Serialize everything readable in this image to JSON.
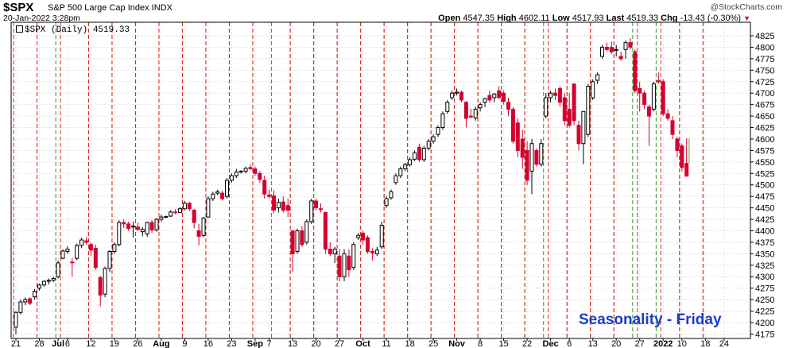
{
  "header": {
    "ticker": "$SPX",
    "company": "S&P 500 Large Cap Index INDX",
    "watermark": "@StockCharts.com",
    "date": "20-Jan-2022 3:28pm",
    "open_label": "Open",
    "open": "4547.35",
    "high_label": "High",
    "high": "4602.11",
    "low_label": "Low",
    "low": "4517.93",
    "last_label": "Last",
    "last": "4519.33",
    "chg_label": "Chg",
    "chg": "-13.43 (-0.30%)",
    "legend": "$SPX (Daily) 4519.33"
  },
  "annotation": "Seasonality - Friday",
  "chart_data": {
    "type": "candlestick",
    "ylim": [
      4160,
      4830
    ],
    "y_ticks": [
      4175,
      4200,
      4225,
      4250,
      4275,
      4300,
      4325,
      4350,
      4375,
      4400,
      4425,
      4450,
      4475,
      4500,
      4525,
      4550,
      4575,
      4600,
      4625,
      4650,
      4675,
      4700,
      4725,
      4750,
      4775,
      4800,
      4825
    ],
    "x_labels": [
      "21",
      "28",
      "Jul",
      "6",
      "12",
      "19",
      "26",
      "Aug",
      "9",
      "16",
      "23",
      "Sep",
      "7",
      "13",
      "20",
      "27",
      "Oct",
      "11",
      "18",
      "25",
      "Nov",
      "8",
      "15",
      "22",
      "Dec",
      "6",
      "13",
      "20",
      "27",
      "2022",
      "10",
      "18",
      "24"
    ],
    "x_label_idx": [
      0,
      5,
      9,
      11,
      16,
      21,
      26,
      31,
      36,
      41,
      46,
      51,
      54,
      59,
      64,
      69,
      74,
      79,
      84,
      89,
      94,
      99,
      104,
      109,
      114,
      118,
      123,
      128,
      133,
      138,
      142,
      147,
      151
    ],
    "bold_labels": [
      "Jul",
      "Aug",
      "Sep",
      "Oct",
      "Nov",
      "Dec",
      "2022"
    ],
    "friday_idx": [
      4,
      8,
      15,
      20,
      25,
      30,
      35,
      40,
      45,
      50,
      54,
      58,
      63,
      68,
      73,
      78,
      83,
      88,
      93,
      98,
      103,
      108,
      112,
      117,
      122,
      127,
      131,
      136,
      141,
      146
    ],
    "monday_idx": [
      0,
      5,
      10,
      16,
      21,
      26,
      31,
      36,
      41,
      46,
      51,
      59,
      64,
      69,
      74,
      79,
      84,
      89,
      94,
      99,
      104,
      109,
      114,
      118,
      123,
      128,
      133,
      138,
      142,
      147
    ],
    "candles": [
      {
        "o": 4190,
        "h": 4225,
        "l": 4175,
        "c": 4222
      },
      {
        "o": 4222,
        "h": 4250,
        "l": 4218,
        "c": 4245
      },
      {
        "o": 4245,
        "h": 4255,
        "l": 4238,
        "c": 4250
      },
      {
        "o": 4252,
        "h": 4255,
        "l": 4238,
        "c": 4242
      },
      {
        "o": 4256,
        "h": 4273,
        "l": 4250,
        "c": 4268
      },
      {
        "o": 4275,
        "h": 4285,
        "l": 4270,
        "c": 4282
      },
      {
        "o": 4282,
        "h": 4292,
        "l": 4278,
        "c": 4290
      },
      {
        "o": 4290,
        "h": 4296,
        "l": 4283,
        "c": 4292
      },
      {
        "o": 4292,
        "h": 4300,
        "l": 4288,
        "c": 4296
      },
      {
        "o": 4300,
        "h": 4335,
        "l": 4296,
        "c": 4330
      },
      {
        "o": 4340,
        "h": 4360,
        "l": 4338,
        "c": 4356
      },
      {
        "o": 4355,
        "h": 4366,
        "l": 4350,
        "c": 4360
      },
      {
        "o": 4332,
        "h": 4340,
        "l": 4300,
        "c": 4331
      },
      {
        "o": 4340,
        "h": 4372,
        "l": 4336,
        "c": 4368
      },
      {
        "o": 4368,
        "h": 4385,
        "l": 4362,
        "c": 4380
      },
      {
        "o": 4378,
        "h": 4386,
        "l": 4370,
        "c": 4375
      },
      {
        "o": 4370,
        "h": 4375,
        "l": 4345,
        "c": 4358
      },
      {
        "o": 4362,
        "h": 4370,
        "l": 4315,
        "c": 4320
      },
      {
        "o": 4298,
        "h": 4302,
        "l": 4235,
        "c": 4260
      },
      {
        "o": 4262,
        "h": 4322,
        "l": 4255,
        "c": 4318
      },
      {
        "o": 4318,
        "h": 4358,
        "l": 4310,
        "c": 4355
      },
      {
        "o": 4355,
        "h": 4375,
        "l": 4350,
        "c": 4370
      },
      {
        "o": 4370,
        "h": 4423,
        "l": 4366,
        "c": 4418
      },
      {
        "o": 4418,
        "h": 4425,
        "l": 4406,
        "c": 4415
      },
      {
        "o": 4415,
        "h": 4420,
        "l": 4400,
        "c": 4405
      },
      {
        "o": 4410,
        "h": 4420,
        "l": 4385,
        "c": 4410
      },
      {
        "o": 4408,
        "h": 4418,
        "l": 4400,
        "c": 4403
      },
      {
        "o": 4398,
        "h": 4408,
        "l": 4388,
        "c": 4403
      },
      {
        "o": 4393,
        "h": 4420,
        "l": 4387,
        "c": 4418
      },
      {
        "o": 4418,
        "h": 4424,
        "l": 4395,
        "c": 4402
      },
      {
        "o": 4402,
        "h": 4428,
        "l": 4398,
        "c": 4425
      },
      {
        "o": 4425,
        "h": 4435,
        "l": 4420,
        "c": 4430
      },
      {
        "o": 4430,
        "h": 4433,
        "l": 4428,
        "c": 4431
      },
      {
        "o": 4432,
        "h": 4445,
        "l": 4430,
        "c": 4441
      },
      {
        "o": 4441,
        "h": 4447,
        "l": 4436,
        "c": 4440
      },
      {
        "o": 4440,
        "h": 4452,
        "l": 4438,
        "c": 4448
      },
      {
        "o": 4448,
        "h": 4465,
        "l": 4445,
        "c": 4460
      },
      {
        "o": 4460,
        "h": 4463,
        "l": 4443,
        "c": 4448
      },
      {
        "o": 4445,
        "h": 4448,
        "l": 4405,
        "c": 4418
      },
      {
        "o": 4400,
        "h": 4415,
        "l": 4368,
        "c": 4388
      },
      {
        "o": 4390,
        "h": 4430,
        "l": 4386,
        "c": 4428
      },
      {
        "o": 4430,
        "h": 4475,
        "l": 4428,
        "c": 4470
      },
      {
        "o": 4470,
        "h": 4485,
        "l": 4465,
        "c": 4480
      },
      {
        "o": 4482,
        "h": 4490,
        "l": 4478,
        "c": 4485
      },
      {
        "o": 4482,
        "h": 4488,
        "l": 4466,
        "c": 4470
      },
      {
        "o": 4475,
        "h": 4515,
        "l": 4470,
        "c": 4510
      },
      {
        "o": 4510,
        "h": 4525,
        "l": 4505,
        "c": 4520
      },
      {
        "o": 4520,
        "h": 4535,
        "l": 4515,
        "c": 4528
      },
      {
        "o": 4528,
        "h": 4532,
        "l": 4525,
        "c": 4530
      },
      {
        "o": 4530,
        "h": 4540,
        "l": 4525,
        "c": 4536
      },
      {
        "o": 4538,
        "h": 4545,
        "l": 4532,
        "c": 4535
      },
      {
        "o": 4535,
        "h": 4540,
        "l": 4520,
        "c": 4525
      },
      {
        "o": 4525,
        "h": 4530,
        "l": 4505,
        "c": 4512
      },
      {
        "o": 4510,
        "h": 4520,
        "l": 4470,
        "c": 4480
      },
      {
        "o": 4478,
        "h": 4490,
        "l": 4470,
        "c": 4475
      },
      {
        "o": 4476,
        "h": 4488,
        "l": 4438,
        "c": 4445
      },
      {
        "o": 4450,
        "h": 4470,
        "l": 4440,
        "c": 4462
      },
      {
        "o": 4463,
        "h": 4475,
        "l": 4440,
        "c": 4445
      },
      {
        "o": 4455,
        "h": 4470,
        "l": 4430,
        "c": 4445
      },
      {
        "o": 4400,
        "h": 4400,
        "l": 4310,
        "c": 4350
      },
      {
        "o": 4355,
        "h": 4405,
        "l": 4350,
        "c": 4400
      },
      {
        "o": 4400,
        "h": 4410,
        "l": 4365,
        "c": 4370
      },
      {
        "o": 4375,
        "h": 4425,
        "l": 4370,
        "c": 4420
      },
      {
        "o": 4420,
        "h": 4470,
        "l": 4415,
        "c": 4465
      },
      {
        "o": 4465,
        "h": 4470,
        "l": 4445,
        "c": 4450
      },
      {
        "o": 4448,
        "h": 4460,
        "l": 4440,
        "c": 4446
      },
      {
        "o": 4440,
        "h": 4440,
        "l": 4350,
        "c": 4360
      },
      {
        "o": 4360,
        "h": 4375,
        "l": 4345,
        "c": 4350
      },
      {
        "o": 4350,
        "h": 4365,
        "l": 4330,
        "c": 4360
      },
      {
        "o": 4345,
        "h": 4360,
        "l": 4290,
        "c": 4300
      },
      {
        "o": 4300,
        "h": 4360,
        "l": 4290,
        "c": 4350
      },
      {
        "o": 4345,
        "h": 4360,
        "l": 4300,
        "c": 4315
      },
      {
        "o": 4320,
        "h": 4375,
        "l": 4315,
        "c": 4370
      },
      {
        "o": 4385,
        "h": 4395,
        "l": 4380,
        "c": 4390
      },
      {
        "o": 4395,
        "h": 4400,
        "l": 4370,
        "c": 4380
      },
      {
        "o": 4385,
        "h": 4390,
        "l": 4350,
        "c": 4355
      },
      {
        "o": 4355,
        "h": 4362,
        "l": 4335,
        "c": 4352
      },
      {
        "o": 4350,
        "h": 4365,
        "l": 4345,
        "c": 4358
      },
      {
        "o": 4365,
        "h": 4420,
        "l": 4360,
        "c": 4412
      },
      {
        "o": 4455,
        "h": 4475,
        "l": 4450,
        "c": 4470
      },
      {
        "o": 4472,
        "h": 4490,
        "l": 4468,
        "c": 4485
      },
      {
        "o": 4505,
        "h": 4525,
        "l": 4500,
        "c": 4520
      },
      {
        "o": 4520,
        "h": 4540,
        "l": 4515,
        "c": 4535
      },
      {
        "o": 4535,
        "h": 4548,
        "l": 4530,
        "c": 4544
      },
      {
        "o": 4544,
        "h": 4560,
        "l": 4540,
        "c": 4555
      },
      {
        "o": 4556,
        "h": 4575,
        "l": 4552,
        "c": 4570
      },
      {
        "o": 4582,
        "h": 4590,
        "l": 4550,
        "c": 4555
      },
      {
        "o": 4555,
        "h": 4585,
        "l": 4550,
        "c": 4580
      },
      {
        "o": 4580,
        "h": 4600,
        "l": 4575,
        "c": 4595
      },
      {
        "o": 4595,
        "h": 4610,
        "l": 4590,
        "c": 4605
      },
      {
        "o": 4610,
        "h": 4630,
        "l": 4605,
        "c": 4625
      },
      {
        "o": 4625,
        "h": 4660,
        "l": 4620,
        "c": 4655
      },
      {
        "o": 4660,
        "h": 4685,
        "l": 4655,
        "c": 4680
      },
      {
        "o": 4690,
        "h": 4705,
        "l": 4685,
        "c": 4700
      },
      {
        "o": 4700,
        "h": 4710,
        "l": 4695,
        "c": 4702
      },
      {
        "o": 4702,
        "h": 4705,
        "l": 4680,
        "c": 4685
      },
      {
        "o": 4680,
        "h": 4683,
        "l": 4625,
        "c": 4645
      },
      {
        "o": 4650,
        "h": 4666,
        "l": 4645,
        "c": 4648
      },
      {
        "o": 4646,
        "h": 4670,
        "l": 4640,
        "c": 4665
      },
      {
        "o": 4668,
        "h": 4680,
        "l": 4660,
        "c": 4675
      },
      {
        "o": 4680,
        "h": 4690,
        "l": 4670,
        "c": 4688
      },
      {
        "o": 4695,
        "h": 4705,
        "l": 4680,
        "c": 4685
      },
      {
        "o": 4690,
        "h": 4700,
        "l": 4680,
        "c": 4698
      },
      {
        "o": 4705,
        "h": 4715,
        "l": 4688,
        "c": 4690
      },
      {
        "o": 4700,
        "h": 4705,
        "l": 4675,
        "c": 4682
      },
      {
        "o": 4680,
        "h": 4690,
        "l": 4650,
        "c": 4665
      },
      {
        "o": 4665,
        "h": 4670,
        "l": 4590,
        "c": 4595
      },
      {
        "o": 4635,
        "h": 4645,
        "l": 4560,
        "c": 4575
      },
      {
        "o": 4600,
        "h": 4620,
        "l": 4535,
        "c": 4560
      },
      {
        "o": 4575,
        "h": 4595,
        "l": 4500,
        "c": 4510
      },
      {
        "o": 4530,
        "h": 4600,
        "l": 4480,
        "c": 4590
      },
      {
        "o": 4575,
        "h": 4580,
        "l": 4540,
        "c": 4545
      },
      {
        "o": 4545,
        "h": 4600,
        "l": 4540,
        "c": 4590
      },
      {
        "o": 4650,
        "h": 4700,
        "l": 4645,
        "c": 4690
      },
      {
        "o": 4690,
        "h": 4705,
        "l": 4680,
        "c": 4700
      },
      {
        "o": 4700,
        "h": 4710,
        "l": 4685,
        "c": 4695
      },
      {
        "o": 4710,
        "h": 4715,
        "l": 4670,
        "c": 4680
      },
      {
        "o": 4690,
        "h": 4700,
        "l": 4630,
        "c": 4640
      },
      {
        "o": 4665,
        "h": 4700,
        "l": 4625,
        "c": 4630
      },
      {
        "o": 4720,
        "h": 4720,
        "l": 4630,
        "c": 4640
      },
      {
        "o": 4630,
        "h": 4640,
        "l": 4575,
        "c": 4590
      },
      {
        "o": 4590,
        "h": 4660,
        "l": 4545,
        "c": 4660
      },
      {
        "o": 4610,
        "h": 4720,
        "l": 4605,
        "c": 4715
      },
      {
        "o": 4690,
        "h": 4730,
        "l": 4685,
        "c": 4725
      },
      {
        "o": 4728,
        "h": 4745,
        "l": 4720,
        "c": 4740
      },
      {
        "o": 4780,
        "h": 4805,
        "l": 4775,
        "c": 4800
      },
      {
        "o": 4800,
        "h": 4810,
        "l": 4790,
        "c": 4795
      },
      {
        "o": 4800,
        "h": 4812,
        "l": 4785,
        "c": 4790
      },
      {
        "o": 4795,
        "h": 4805,
        "l": 4780,
        "c": 4795
      },
      {
        "o": 4780,
        "h": 4790,
        "l": 4770,
        "c": 4775
      },
      {
        "o": 4795,
        "h": 4815,
        "l": 4775,
        "c": 4810
      },
      {
        "o": 4810,
        "h": 4820,
        "l": 4795,
        "c": 4800
      },
      {
        "o": 4790,
        "h": 4795,
        "l": 4700,
        "c": 4705
      },
      {
        "o": 4710,
        "h": 4725,
        "l": 4660,
        "c": 4700
      },
      {
        "o": 4700,
        "h": 4705,
        "l": 4665,
        "c": 4675
      },
      {
        "o": 4670,
        "h": 4675,
        "l": 4585,
        "c": 4650
      },
      {
        "o": 4665,
        "h": 4725,
        "l": 4660,
        "c": 4720
      },
      {
        "o": 4727,
        "h": 4745,
        "l": 4720,
        "c": 4725
      },
      {
        "o": 4725,
        "h": 4730,
        "l": 4650,
        "c": 4655
      },
      {
        "o": 4655,
        "h": 4665,
        "l": 4640,
        "c": 4645
      },
      {
        "o": 4640,
        "h": 4650,
        "l": 4600,
        "c": 4610
      },
      {
        "o": 4600,
        "h": 4605,
        "l": 4560,
        "c": 4575
      },
      {
        "o": 4585,
        "h": 4590,
        "l": 4530,
        "c": 4538
      },
      {
        "o": 4547,
        "h": 4602,
        "l": 4518,
        "c": 4519,
        "live": true
      }
    ]
  }
}
